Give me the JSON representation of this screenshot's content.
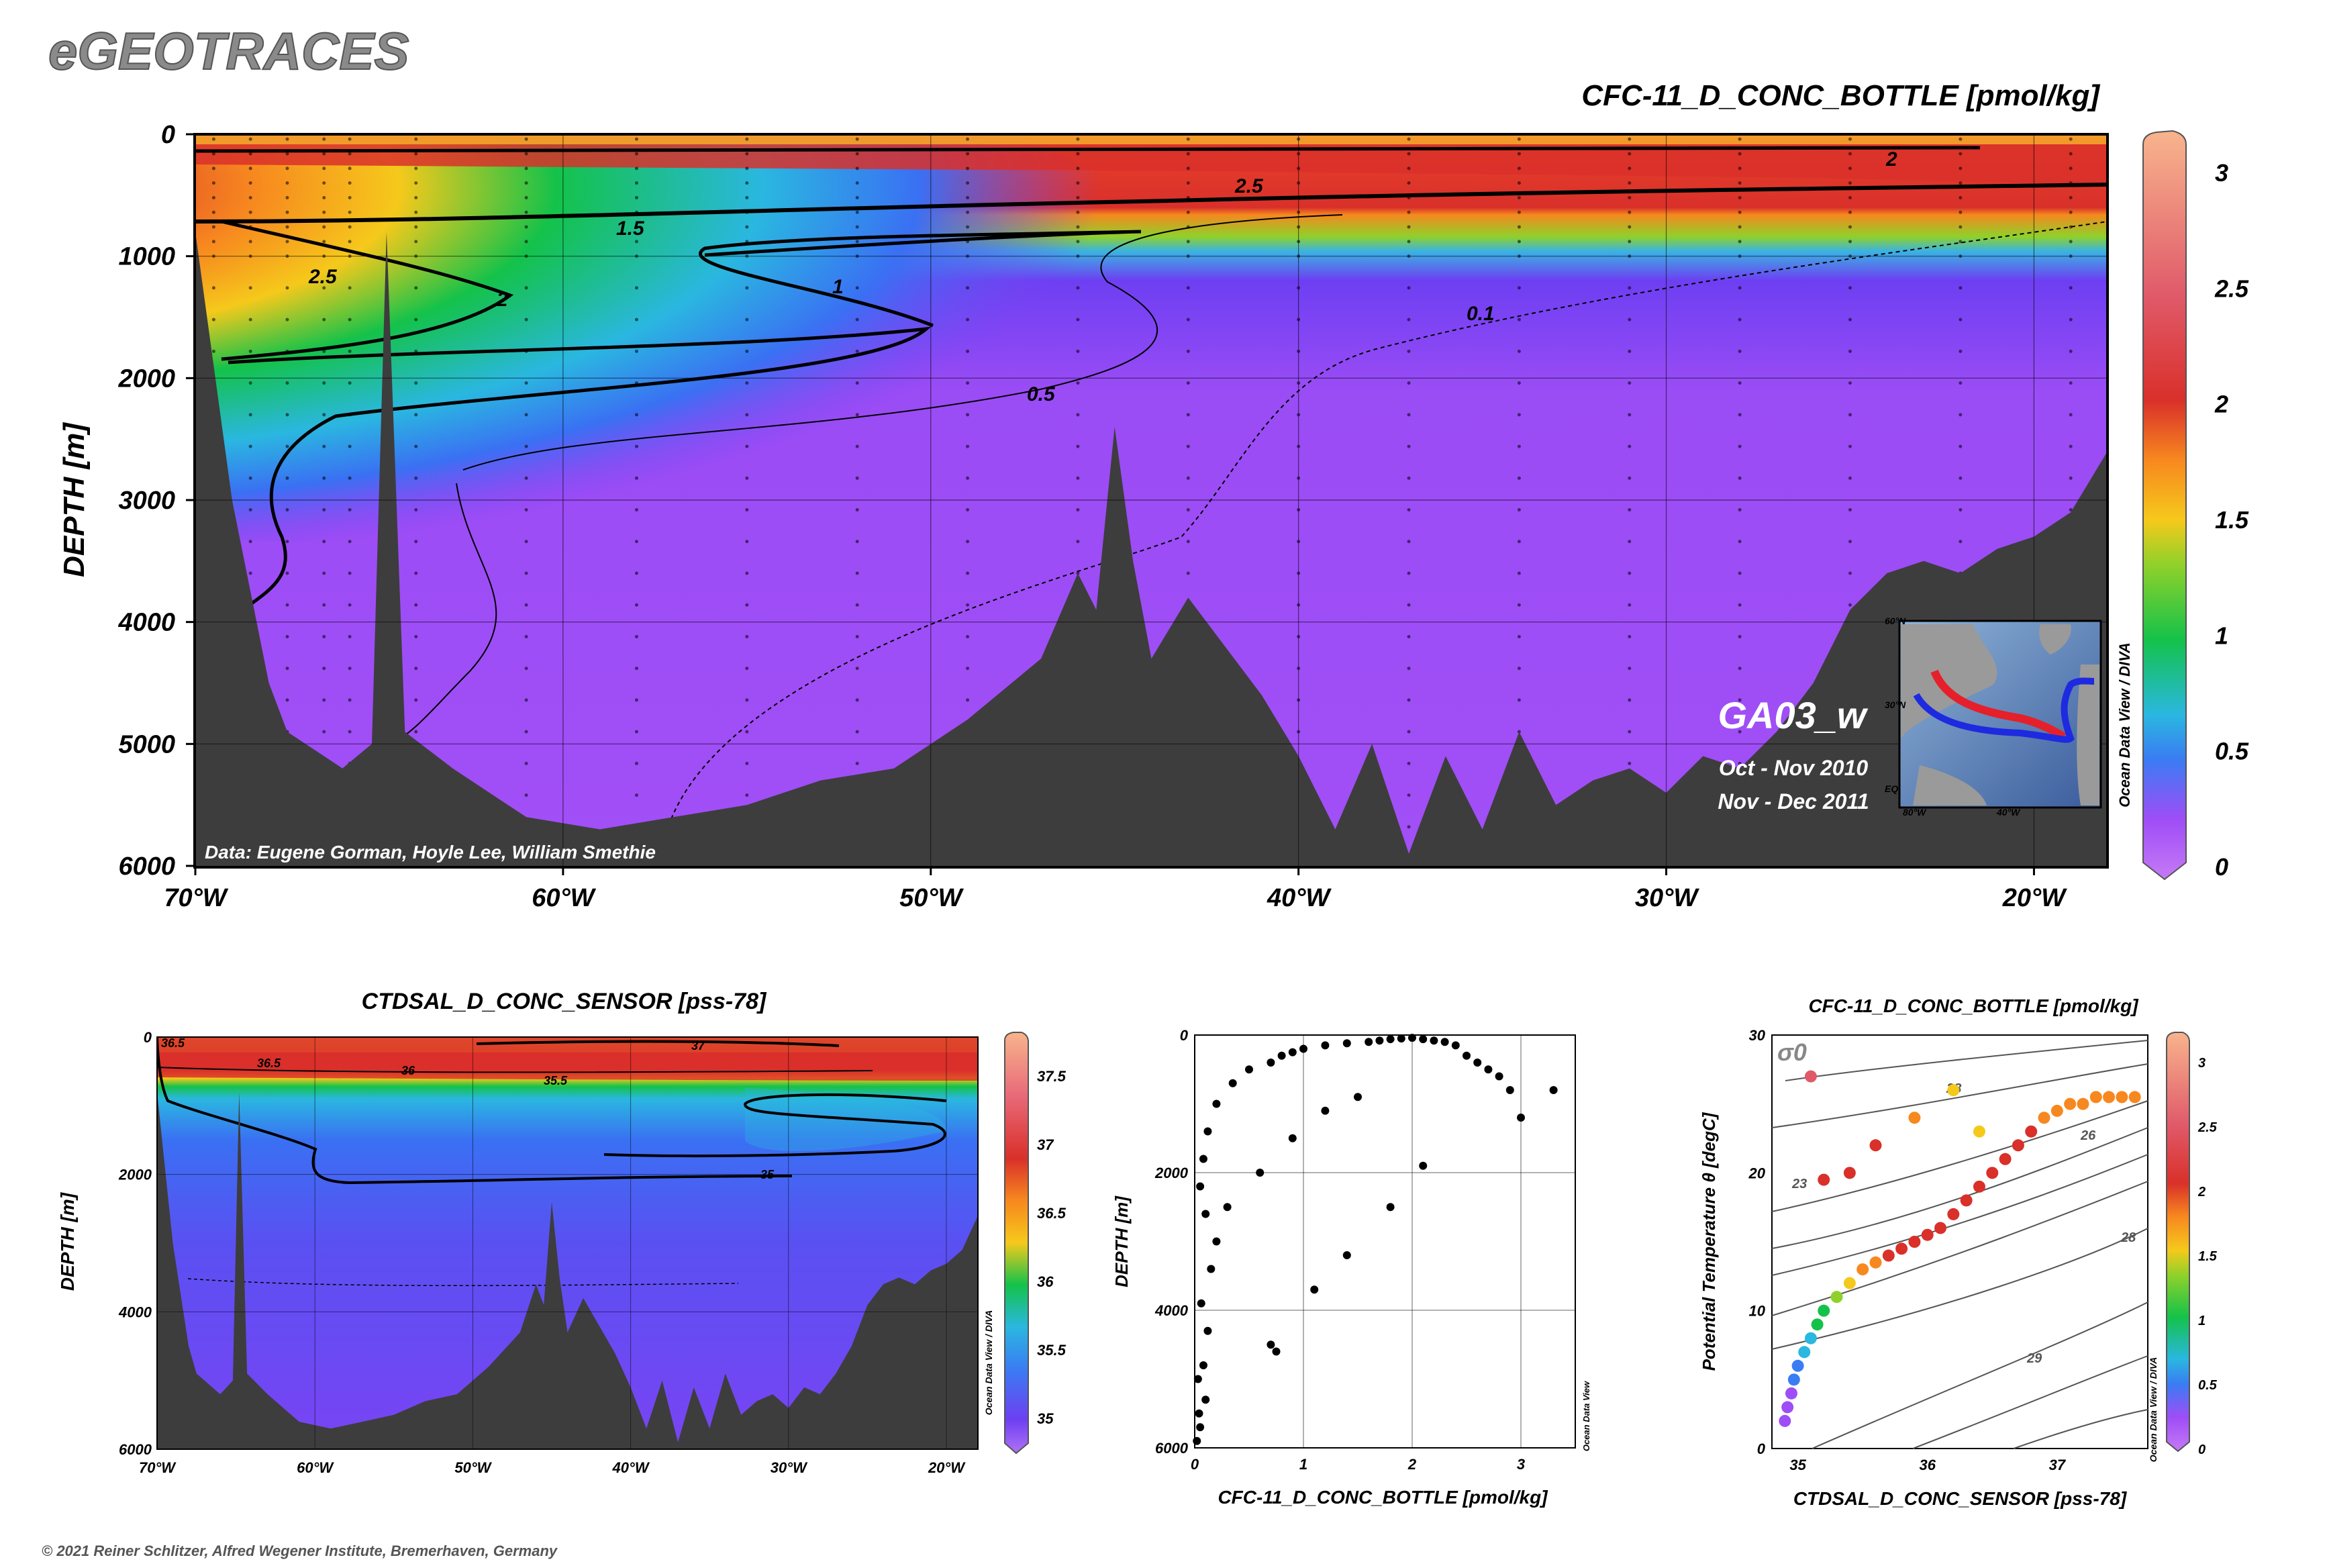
{
  "header": {
    "brand": "eGEOTRACES",
    "copyright": "© 2021 Reiner Schlitzer, Alfred Wegener Institute, Bremerhaven, Germany"
  },
  "main_section": {
    "title": "CFC-11_D_CONC_BOTTLE [pmol/kg]",
    "ylabel": "DEPTH [m]",
    "y_ticks": [
      "0",
      "1000",
      "2000",
      "3000",
      "4000",
      "5000",
      "6000"
    ],
    "x_ticks": [
      "70°W",
      "60°W",
      "50°W",
      "40°W",
      "30°W",
      "20°W"
    ],
    "colorbar_ticks": [
      "0",
      "0.5",
      "1",
      "1.5",
      "2",
      "2.5",
      "3"
    ],
    "colorbar_label": "Ocean Data View / DIVA",
    "contour_labels": [
      "2.5",
      "2",
      "1.5",
      "1",
      "0.5",
      "0.1",
      "2.5",
      "2"
    ],
    "section_name": "GA03_w",
    "cruise_dates": [
      "Oct - Nov 2010",
      "Nov - Dec 2011"
    ],
    "data_credit": "Data: Eugene Gorman, Hoyle Lee, William Smethie",
    "inset_map_labels": [
      "60°N",
      "30°N",
      "EQ",
      "80°W",
      "40°W"
    ]
  },
  "salinity_section": {
    "title": "CTDSAL_D_CONC_SENSOR [pss-78]",
    "ylabel": "DEPTH [m]",
    "y_ticks": [
      "0",
      "2000",
      "4000",
      "6000"
    ],
    "x_ticks": [
      "70°W",
      "60°W",
      "50°W",
      "40°W",
      "30°W",
      "20°W"
    ],
    "colorbar_ticks": [
      "35",
      "35.5",
      "36",
      "36.5",
      "37",
      "37.5"
    ],
    "colorbar_label": "Ocean Data View / DIVA",
    "contour_labels": [
      "36.5",
      "36.5",
      "36",
      "35.5",
      "37",
      "35"
    ]
  },
  "profile_plot": {
    "xlabel": "CFC-11_D_CONC_BOTTLE [pmol/kg]",
    "ylabel": "DEPTH [m]",
    "x_ticks": [
      "0",
      "1",
      "2",
      "3"
    ],
    "y_ticks": [
      "0",
      "2000",
      "4000",
      "6000"
    ],
    "watermark": "Ocean Data View"
  },
  "ts_plot": {
    "title": "CFC-11_D_CONC_BOTTLE [pmol/kg]",
    "xlabel": "CTDSAL_D_CONC_SENSOR [pss-78]",
    "ylabel": "Potential Temperature θ [degC]",
    "x_ticks": [
      "35",
      "36",
      "37"
    ],
    "y_ticks": [
      "0",
      "10",
      "20",
      "30"
    ],
    "sigma_label": "σ0",
    "isopycnal_labels": [
      "23",
      "26",
      "28",
      "29",
      "28"
    ],
    "colorbar_ticks": [
      "0",
      "0.5",
      "1",
      "1.5",
      "2",
      "2.5",
      "3"
    ],
    "colorbar_label": "Ocean Data View / DIVA"
  },
  "chart_data": [
    {
      "type": "heatmap",
      "title": "CFC-11_D_CONC_BOTTLE [pmol/kg]",
      "xlabel": "",
      "ylabel": "DEPTH [m]",
      "xlim": [
        -70,
        -18
      ],
      "ylim": [
        6000,
        0
      ],
      "colorbar_range": [
        0,
        3.2
      ],
      "colormap": [
        "#9f4df6",
        "#6d3ff2",
        "#3a7cf3",
        "#2ab7e0",
        "#14c24a",
        "#8fd12a",
        "#f5c91b",
        "#f7881f",
        "#d9302a",
        "#e86a78",
        "#f8b48d"
      ],
      "contour_levels": [
        0.1,
        0.5,
        1,
        1.5,
        2,
        2.5
      ],
      "bottom_depth_profile": {
        "lon": [
          -70,
          -69,
          -68,
          -67.5,
          -66,
          -65.2,
          -64.8,
          -64.3,
          -63,
          -61,
          -59,
          -57,
          -55,
          -53,
          -51,
          -49,
          -47,
          -46,
          -45.5,
          -45,
          -44.5,
          -44,
          -43,
          -42,
          -41,
          -40,
          -39,
          -38,
          -37,
          -36,
          -35,
          -34,
          -33,
          -32,
          -31,
          -30,
          -29,
          -28,
          -27,
          -26,
          -25,
          -24,
          -23,
          -22,
          -21,
          -20,
          -19,
          -18
        ],
        "depth": [
          800,
          3000,
          4500,
          4900,
          5200,
          5000,
          800,
          4900,
          5200,
          5600,
          5700,
          5600,
          5500,
          5300,
          5200,
          4800,
          4300,
          3600,
          3900,
          2400,
          3500,
          4300,
          3800,
          4200,
          4600,
          5100,
          5700,
          5000,
          5900,
          5100,
          5700,
          4900,
          5500,
          5300,
          5200,
          5400,
          5100,
          5200,
          4900,
          4500,
          3900,
          3600,
          3500,
          3600,
          3400,
          3300,
          3100,
          2600
        ]
      }
    },
    {
      "type": "heatmap",
      "title": "CTDSAL_D_CONC_SENSOR [pss-78]",
      "ylabel": "DEPTH [m]",
      "xlim": [
        -70,
        -18
      ],
      "ylim": [
        6000,
        0
      ],
      "colorbar_range": [
        34.8,
        37.8
      ],
      "contour_levels": [
        35,
        35.5,
        36,
        36.5,
        37
      ]
    },
    {
      "type": "scatter",
      "xlabel": "CFC-11_D_CONC_BOTTLE [pmol/kg]",
      "ylabel": "DEPTH [m]",
      "xlim": [
        0,
        3.5
      ],
      "ylim": [
        6000,
        0
      ],
      "x": [
        0.05,
        0.1,
        0.08,
        0.12,
        0.06,
        0.15,
        0.2,
        0.1,
        0.05,
        0.08,
        0.12,
        0.2,
        0.35,
        0.5,
        0.7,
        0.8,
        0.9,
        1.0,
        1.2,
        1.4,
        1.6,
        1.7,
        1.8,
        1.9,
        2.0,
        2.1,
        2.2,
        2.3,
        2.4,
        2.5,
        2.6,
        2.7,
        2.8,
        2.9,
        3.0,
        3.3,
        1.5,
        1.2,
        0.9,
        0.6,
        0.3,
        0.7,
        0.75,
        1.1,
        1.4,
        1.8,
        2.1,
        0.02,
        0.04,
        0.03
      ],
      "y": [
        5700,
        5300,
        4800,
        4300,
        3900,
        3400,
        3000,
        2600,
        2200,
        1800,
        1400,
        1000,
        700,
        500,
        400,
        300,
        250,
        200,
        150,
        120,
        100,
        80,
        60,
        50,
        40,
        60,
        80,
        100,
        150,
        300,
        400,
        500,
        600,
        800,
        1200,
        800,
        900,
        1100,
        1500,
        2000,
        2500,
        4500,
        4600,
        3700,
        3200,
        2500,
        1900,
        5900,
        5500,
        5000
      ]
    },
    {
      "type": "scatter",
      "title": "CFC-11_D_CONC_BOTTLE [pmol/kg]",
      "xlabel": "CTDSAL_D_CONC_SENSOR [pss-78]",
      "ylabel": "Potential Temperature θ [degC]",
      "xlim": [
        34.8,
        37.7
      ],
      "ylim": [
        0,
        30
      ],
      "x": [
        34.9,
        34.92,
        34.95,
        34.97,
        35.0,
        35.05,
        35.1,
        35.15,
        35.2,
        35.3,
        35.4,
        35.5,
        35.6,
        35.7,
        35.8,
        35.9,
        36.0,
        36.1,
        36.2,
        36.3,
        36.4,
        36.5,
        36.6,
        36.7,
        36.8,
        36.9,
        37.0,
        37.1,
        37.2,
        37.3,
        37.4,
        37.5,
        37.6,
        36.4,
        36.2,
        35.9,
        35.6,
        35.4,
        35.2,
        35.1
      ],
      "y": [
        2,
        3,
        4,
        5,
        6,
        7,
        8,
        9,
        10,
        11,
        12,
        13,
        13.5,
        14,
        14.5,
        15,
        15.5,
        16,
        17,
        18,
        19,
        20,
        21,
        22,
        23,
        24,
        24.5,
        25,
        25,
        25.5,
        25.5,
        25.5,
        25.5,
        23,
        26,
        24,
        22,
        20,
        19.5,
        27
      ],
      "values": [
        0.1,
        0.2,
        0.3,
        0.4,
        0.5,
        0.7,
        0.8,
        1.0,
        1.2,
        1.4,
        1.6,
        1.8,
        2.0,
        2.1,
        2.2,
        2.2,
        2.3,
        2.3,
        2.3,
        2.3,
        2.2,
        2.2,
        2.2,
        2.1,
        2.1,
        2.0,
        2.0,
        1.9,
        1.9,
        1.8,
        1.8,
        1.8,
        1.8,
        1.7,
        1.6,
        2.0,
        2.3,
        2.2,
        2.4,
        3.0
      ]
    }
  ]
}
